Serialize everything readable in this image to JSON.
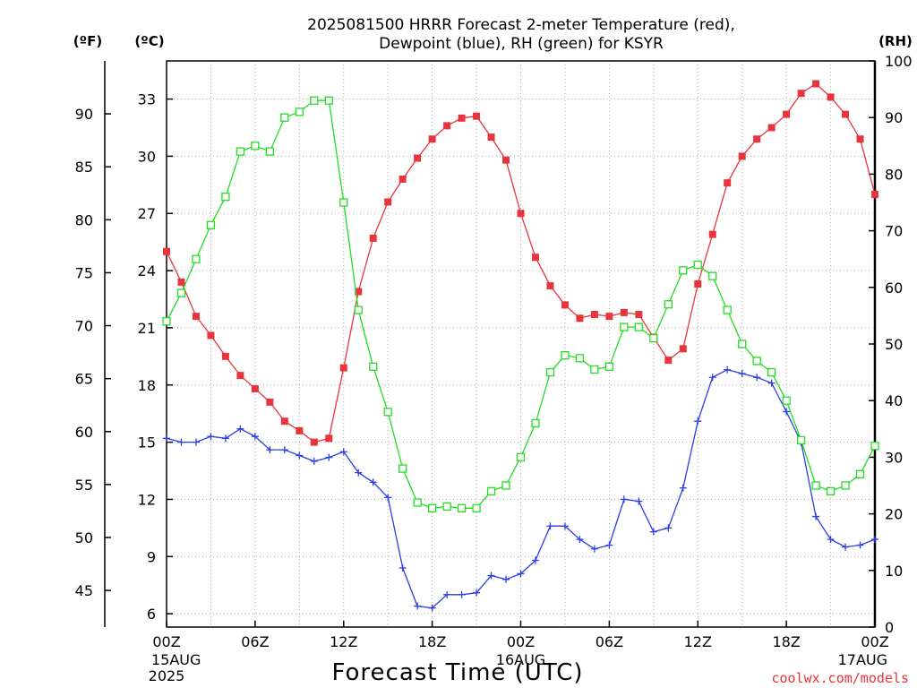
{
  "chart_data": {
    "type": "line",
    "title_line1": "2025081500 HRRR Forecast 2-meter Temperature (red),",
    "title_line2": "Dewpoint (blue), RH (green) for KSYR",
    "xlabel": "Forecast Time (UTC)",
    "credit": "coolwx.com/models",
    "unit_f": "(ºF)",
    "unit_c": "(ºC)",
    "unit_rh": "(RH)",
    "x_range_hours": [
      0,
      48
    ],
    "ylim_c": [
      5.3,
      35.0
    ],
    "ylim_rh": [
      0,
      100
    ],
    "grid": true,
    "x_ticks": [
      {
        "h": 0,
        "label": "00Z",
        "sub1": "15AUG",
        "sub2": "2025"
      },
      {
        "h": 6,
        "label": "06Z",
        "sub1": "",
        "sub2": ""
      },
      {
        "h": 12,
        "label": "12Z",
        "sub1": "",
        "sub2": ""
      },
      {
        "h": 18,
        "label": "18Z",
        "sub1": "",
        "sub2": ""
      },
      {
        "h": 24,
        "label": "00Z",
        "sub1": "16AUG",
        "sub2": ""
      },
      {
        "h": 30,
        "label": "06Z",
        "sub1": "",
        "sub2": ""
      },
      {
        "h": 36,
        "label": "12Z",
        "sub1": "",
        "sub2": ""
      },
      {
        "h": 42,
        "label": "18Z",
        "sub1": "",
        "sub2": ""
      },
      {
        "h": 48,
        "label": "00Z",
        "sub1": "17AUG",
        "sub2": ""
      }
    ],
    "c_ticks": [
      "6",
      "9",
      "12",
      "15",
      "18",
      "21",
      "24",
      "27",
      "30",
      "33"
    ],
    "f_ticks": [
      "45",
      "50",
      "55",
      "60",
      "65",
      "70",
      "75",
      "80",
      "85",
      "90"
    ],
    "rh_ticks": [
      "0",
      "10",
      "20",
      "30",
      "40",
      "50",
      "60",
      "70",
      "80",
      "90",
      "100"
    ],
    "colors": {
      "temperature": "#e8343c",
      "dewpoint": "#2b3ee0",
      "rh": "#22dd22",
      "grid": "#a8a8a8"
    },
    "series": [
      {
        "key": "temperature",
        "marker": "filled-square",
        "values": [
          25.0,
          23.4,
          21.6,
          20.6,
          19.5,
          18.5,
          17.8,
          17.1,
          16.1,
          15.6,
          15.0,
          15.2,
          18.9,
          22.9,
          25.7,
          27.6,
          28.8,
          29.9,
          30.9,
          31.6,
          32.0,
          32.1,
          31.0,
          29.8,
          27.0,
          24.7,
          23.2,
          22.2,
          21.5,
          21.7,
          21.6,
          21.8,
          21.7,
          20.5,
          19.3,
          19.9,
          23.3,
          25.9,
          28.6,
          30.0,
          30.9,
          31.5,
          32.2,
          33.3,
          33.8,
          33.1,
          32.2,
          30.9,
          28.0
        ]
      },
      {
        "key": "dewpoint",
        "marker": "plus",
        "values": [
          15.2,
          15.0,
          15.0,
          15.3,
          15.2,
          15.7,
          15.3,
          14.6,
          14.6,
          14.3,
          14.0,
          14.2,
          14.5,
          13.4,
          12.9,
          12.1,
          8.4,
          6.4,
          6.3,
          7.0,
          7.0,
          7.1,
          8.0,
          7.8,
          8.1,
          8.8,
          10.6,
          10.6,
          9.9,
          9.4,
          9.6,
          12.0,
          11.9,
          10.3,
          10.5,
          12.6,
          16.1,
          18.4,
          18.8,
          18.6,
          18.4,
          18.1,
          16.6,
          15.0,
          11.1,
          9.9,
          9.5,
          9.6,
          9.9
        ]
      },
      {
        "key": "rh",
        "marker": "open-square",
        "values": [
          54,
          59,
          65,
          71,
          76,
          84,
          85,
          84,
          90,
          91,
          93,
          93,
          75,
          56,
          46,
          38,
          28,
          22,
          21,
          21.3,
          21,
          21,
          24,
          25,
          30,
          36,
          45,
          48,
          47.5,
          45.5,
          46,
          53,
          53,
          51,
          57,
          63,
          64,
          62,
          56,
          50,
          47,
          45,
          40,
          33,
          25,
          24,
          25,
          27,
          32
        ]
      }
    ]
  }
}
